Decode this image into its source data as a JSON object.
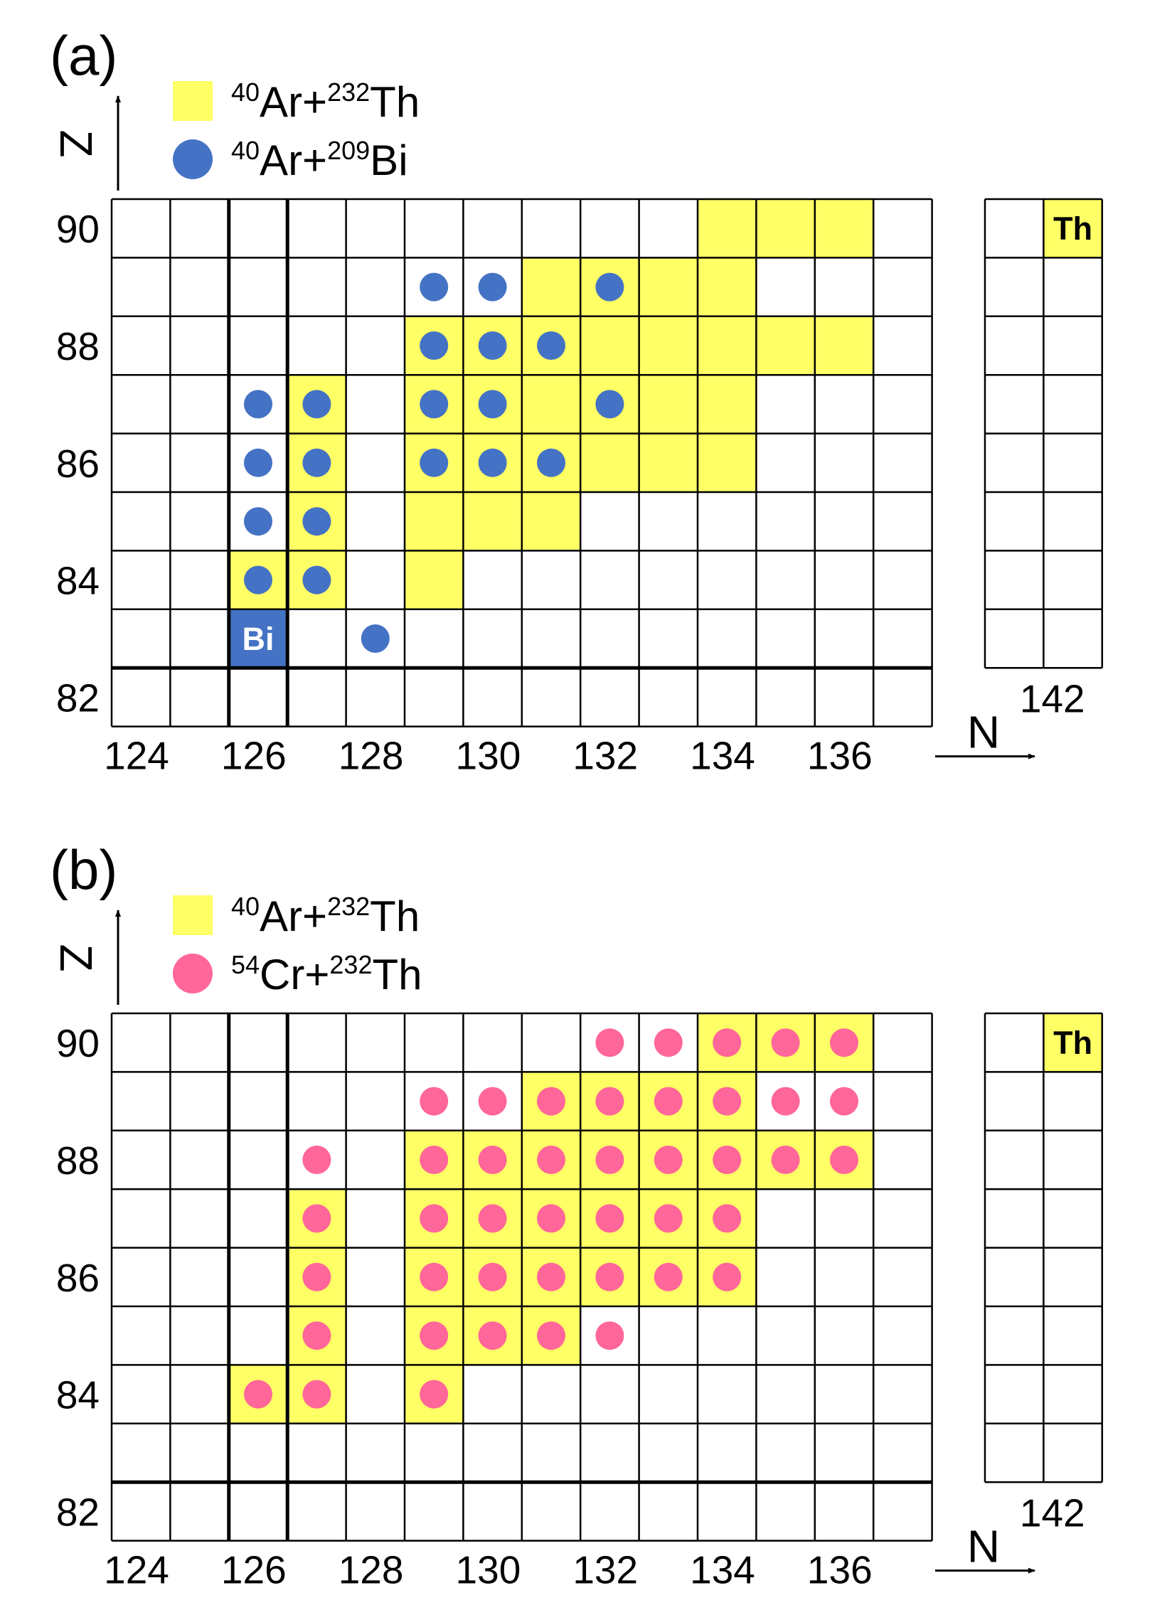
{
  "colors": {
    "th_fill": "#ffff66",
    "bi_dot": "#4472c4",
    "bi_box": "#4472c4",
    "cr_dot": "#ff6699",
    "grid": "#000000"
  },
  "chart_data": [
    {
      "type": "heatmap",
      "panel_label": "(a)",
      "xlabel": "N",
      "ylabel": "Z",
      "x_ticks": [
        "124",
        "126",
        "128",
        "130",
        "132",
        "134",
        "136"
      ],
      "y_ticks": [
        "82",
        "84",
        "86",
        "88",
        "90"
      ],
      "extra_x_tick": "142",
      "xlim": [
        124,
        137
      ],
      "ylim": [
        82,
        90
      ],
      "legend": [
        {
          "marker": "square",
          "pre": "40",
          "mid": "Ar+",
          "sup": "232",
          "post": "Th"
        },
        {
          "marker": "circle",
          "pre": "40",
          "mid": "Ar+",
          "sup": "209",
          "post": "Bi"
        }
      ],
      "ref_boxes": [
        {
          "label": "Th",
          "N": 142,
          "Z": 90
        },
        {
          "label": "Bi",
          "N": 126,
          "Z": 83
        }
      ],
      "series": [
        {
          "name": "40Ar+232Th",
          "marker": "square",
          "points": [
            [
              134,
              90
            ],
            [
              135,
              90
            ],
            [
              136,
              90
            ],
            [
              131,
              89
            ],
            [
              132,
              89
            ],
            [
              133,
              89
            ],
            [
              134,
              89
            ],
            [
              129,
              88
            ],
            [
              130,
              88
            ],
            [
              131,
              88
            ],
            [
              132,
              88
            ],
            [
              133,
              88
            ],
            [
              134,
              88
            ],
            [
              135,
              88
            ],
            [
              136,
              88
            ],
            [
              127,
              87
            ],
            [
              129,
              87
            ],
            [
              130,
              87
            ],
            [
              131,
              87
            ],
            [
              132,
              87
            ],
            [
              133,
              87
            ],
            [
              134,
              87
            ],
            [
              127,
              86
            ],
            [
              129,
              86
            ],
            [
              130,
              86
            ],
            [
              131,
              86
            ],
            [
              132,
              86
            ],
            [
              133,
              86
            ],
            [
              134,
              86
            ],
            [
              127,
              85
            ],
            [
              129,
              85
            ],
            [
              130,
              85
            ],
            [
              131,
              85
            ],
            [
              126,
              84
            ],
            [
              127,
              84
            ],
            [
              129,
              84
            ]
          ]
        },
        {
          "name": "40Ar+209Bi",
          "marker": "circle",
          "points": [
            [
              129,
              89
            ],
            [
              130,
              89
            ],
            [
              132,
              89
            ],
            [
              129,
              88
            ],
            [
              130,
              88
            ],
            [
              131,
              88
            ],
            [
              126,
              87
            ],
            [
              127,
              87
            ],
            [
              129,
              87
            ],
            [
              130,
              87
            ],
            [
              132,
              87
            ],
            [
              126,
              86
            ],
            [
              127,
              86
            ],
            [
              129,
              86
            ],
            [
              130,
              86
            ],
            [
              131,
              86
            ],
            [
              126,
              85
            ],
            [
              127,
              85
            ],
            [
              126,
              84
            ],
            [
              127,
              84
            ],
            [
              128,
              83
            ]
          ]
        }
      ]
    },
    {
      "type": "heatmap",
      "panel_label": "(b)",
      "xlabel": "N",
      "ylabel": "Z",
      "x_ticks": [
        "124",
        "126",
        "128",
        "130",
        "132",
        "134",
        "136"
      ],
      "y_ticks": [
        "82",
        "84",
        "86",
        "88",
        "90"
      ],
      "extra_x_tick": "142",
      "xlim": [
        124,
        137
      ],
      "ylim": [
        82,
        90
      ],
      "legend": [
        {
          "marker": "square",
          "pre": "40",
          "mid": "Ar+",
          "sup": "232",
          "post": "Th"
        },
        {
          "marker": "circle",
          "pre": "54",
          "mid": "Cr+",
          "sup": "232",
          "post": "Th"
        }
      ],
      "ref_boxes": [
        {
          "label": "Th",
          "N": 142,
          "Z": 90
        }
      ],
      "series": [
        {
          "name": "40Ar+232Th",
          "marker": "square",
          "points": [
            [
              134,
              90
            ],
            [
              135,
              90
            ],
            [
              136,
              90
            ],
            [
              131,
              89
            ],
            [
              132,
              89
            ],
            [
              133,
              89
            ],
            [
              134,
              89
            ],
            [
              129,
              88
            ],
            [
              130,
              88
            ],
            [
              131,
              88
            ],
            [
              132,
              88
            ],
            [
              133,
              88
            ],
            [
              134,
              88
            ],
            [
              135,
              88
            ],
            [
              136,
              88
            ],
            [
              127,
              87
            ],
            [
              129,
              87
            ],
            [
              130,
              87
            ],
            [
              131,
              87
            ],
            [
              132,
              87
            ],
            [
              133,
              87
            ],
            [
              134,
              87
            ],
            [
              127,
              86
            ],
            [
              129,
              86
            ],
            [
              130,
              86
            ],
            [
              131,
              86
            ],
            [
              132,
              86
            ],
            [
              133,
              86
            ],
            [
              134,
              86
            ],
            [
              127,
              85
            ],
            [
              129,
              85
            ],
            [
              130,
              85
            ],
            [
              131,
              85
            ],
            [
              126,
              84
            ],
            [
              127,
              84
            ],
            [
              129,
              84
            ]
          ]
        },
        {
          "name": "54Cr+232Th",
          "marker": "circle",
          "points": [
            [
              132,
              90
            ],
            [
              133,
              90
            ],
            [
              134,
              90
            ],
            [
              135,
              90
            ],
            [
              136,
              90
            ],
            [
              129,
              89
            ],
            [
              130,
              89
            ],
            [
              131,
              89
            ],
            [
              132,
              89
            ],
            [
              133,
              89
            ],
            [
              134,
              89
            ],
            [
              135,
              89
            ],
            [
              136,
              89
            ],
            [
              127,
              88
            ],
            [
              129,
              88
            ],
            [
              130,
              88
            ],
            [
              131,
              88
            ],
            [
              132,
              88
            ],
            [
              133,
              88
            ],
            [
              134,
              88
            ],
            [
              135,
              88
            ],
            [
              136,
              88
            ],
            [
              127,
              87
            ],
            [
              129,
              87
            ],
            [
              130,
              87
            ],
            [
              131,
              87
            ],
            [
              132,
              87
            ],
            [
              133,
              87
            ],
            [
              134,
              87
            ],
            [
              127,
              86
            ],
            [
              129,
              86
            ],
            [
              130,
              86
            ],
            [
              131,
              86
            ],
            [
              132,
              86
            ],
            [
              133,
              86
            ],
            [
              134,
              86
            ],
            [
              127,
              85
            ],
            [
              129,
              85
            ],
            [
              130,
              85
            ],
            [
              131,
              85
            ],
            [
              132,
              85
            ],
            [
              126,
              84
            ],
            [
              127,
              84
            ],
            [
              129,
              84
            ]
          ]
        }
      ]
    }
  ]
}
